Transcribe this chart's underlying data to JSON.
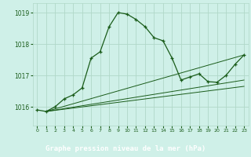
{
  "title": "Graphe pression niveau de la mer (hPa)",
  "bg_color": "#cff0e8",
  "grid_color": "#b0d8c8",
  "line_color": "#1a5c1a",
  "label_bg": "#2a6b2a",
  "label_fg": "#ffffff",
  "xlim": [
    -0.5,
    23.5
  ],
  "ylim": [
    1015.4,
    1019.3
  ],
  "yticks": [
    1016,
    1017,
    1018,
    1019
  ],
  "xticks": [
    0,
    1,
    2,
    3,
    4,
    5,
    6,
    7,
    8,
    9,
    10,
    11,
    12,
    13,
    14,
    15,
    16,
    17,
    18,
    19,
    20,
    21,
    22,
    23
  ],
  "main_line_x": [
    0,
    1,
    2,
    3,
    4,
    5,
    6,
    7,
    8,
    9,
    10,
    11,
    12,
    13,
    14,
    15,
    16,
    17,
    18,
    19,
    20,
    21,
    22,
    23
  ],
  "main_line_y": [
    1015.9,
    1015.85,
    1016.0,
    1016.25,
    1016.38,
    1016.6,
    1017.55,
    1017.75,
    1018.55,
    1019.0,
    1018.95,
    1018.78,
    1018.55,
    1018.2,
    1018.1,
    1017.55,
    1016.85,
    1016.95,
    1017.05,
    1016.8,
    1016.78,
    1017.0,
    1017.35,
    1017.65
  ],
  "trend_line1_x": [
    1,
    23
  ],
  "trend_line1_y": [
    1015.85,
    1017.65
  ],
  "trend_line2_x": [
    1,
    23
  ],
  "trend_line2_y": [
    1015.85,
    1016.85
  ],
  "trend_line3_x": [
    1,
    23
  ],
  "trend_line3_y": [
    1015.85,
    1016.65
  ]
}
